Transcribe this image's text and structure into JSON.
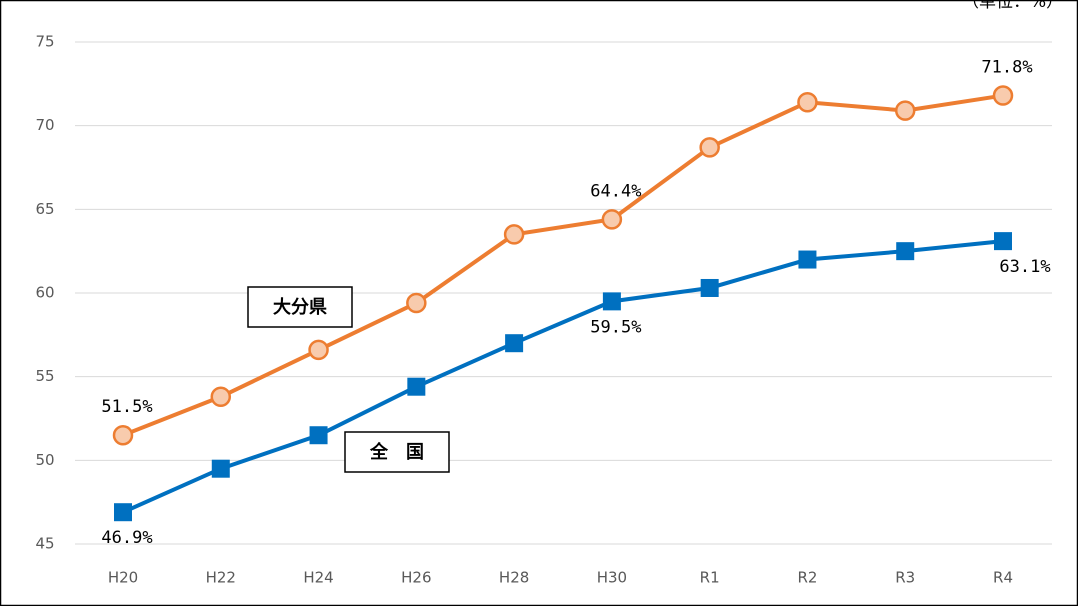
{
  "chart_data": {
    "type": "line",
    "unit_note": "（単位：%）",
    "categories": [
      "H20",
      "H22",
      "H24",
      "H26",
      "H28",
      "H30",
      "R1",
      "R2",
      "R3",
      "R4"
    ],
    "series": [
      {
        "name": "大分県",
        "color": "#ed7d31",
        "marker": "circle",
        "values": [
          51.5,
          53.8,
          56.6,
          59.4,
          63.5,
          64.4,
          68.7,
          71.4,
          70.9,
          71.8
        ],
        "value_labels": [
          "51.5%",
          null,
          null,
          null,
          null,
          "64.4%",
          null,
          null,
          null,
          "71.8%"
        ]
      },
      {
        "name": "全　国",
        "color": "#0070c0",
        "marker": "square",
        "values": [
          46.9,
          49.5,
          51.5,
          54.4,
          57.0,
          59.5,
          60.3,
          62.0,
          62.5,
          63.1
        ],
        "value_labels": [
          "46.9%",
          null,
          null,
          null,
          null,
          "59.5%",
          null,
          null,
          null,
          "63.1%"
        ]
      }
    ],
    "ylim": [
      45,
      75
    ],
    "yticks": [
      45,
      50,
      55,
      60,
      65,
      70,
      75
    ],
    "grid": true
  }
}
